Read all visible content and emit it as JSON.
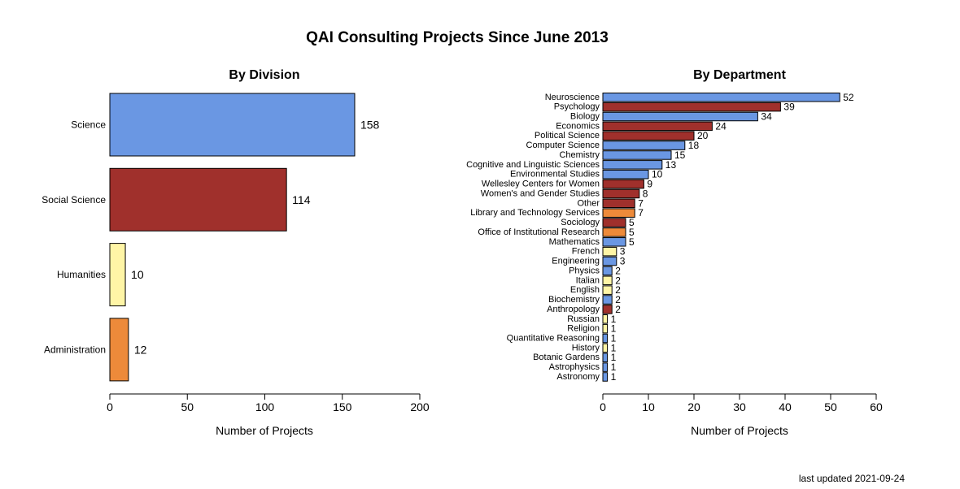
{
  "title": "QAI Consulting Projects Since June 2013",
  "footer": "last updated 2021-09-24",
  "colors": {
    "Science": "#6a97e3",
    "Social Science": "#a0302c",
    "Humanities": "#fff5a6",
    "Administration": "#ed8a3a"
  },
  "chart_data": [
    {
      "type": "bar",
      "orientation": "horizontal",
      "title": "By Division",
      "xlabel": "Number of Projects",
      "xlim": [
        0,
        200
      ],
      "xticks": [
        0,
        50,
        100,
        150,
        200
      ],
      "categories": [
        "Science",
        "Social Science",
        "Humanities",
        "Administration"
      ],
      "values": [
        158,
        114,
        10,
        12
      ],
      "groups": [
        "Science",
        "Social Science",
        "Humanities",
        "Administration"
      ]
    },
    {
      "type": "bar",
      "orientation": "horizontal",
      "title": "By Department",
      "xlabel": "Number of Projects",
      "xlim": [
        0,
        60
      ],
      "xticks": [
        0,
        10,
        20,
        30,
        40,
        50,
        60
      ],
      "categories": [
        "Neuroscience",
        "Psychology",
        "Biology",
        "Economics",
        "Political Science",
        "Computer Science",
        "Chemistry",
        "Cognitive and Linguistic Sciences",
        "Environmental Studies",
        "Wellesley Centers for Women",
        "Women's and Gender Studies",
        "Other",
        "Library and Technology Services",
        "Sociology",
        "Office of Institutional Research",
        "Mathematics",
        "French",
        "Engineering",
        "Physics",
        "Italian",
        "English",
        "Biochemistry",
        "Anthropology",
        "Russian",
        "Religion",
        "Quantitative Reasoning",
        "History",
        "Botanic Gardens",
        "Astrophysics",
        "Astronomy"
      ],
      "values": [
        52,
        39,
        34,
        24,
        20,
        18,
        15,
        13,
        10,
        9,
        8,
        7,
        7,
        5,
        5,
        5,
        3,
        3,
        2,
        2,
        2,
        2,
        2,
        1,
        1,
        1,
        1,
        1,
        1,
        1
      ],
      "groups": [
        "Science",
        "Social Science",
        "Science",
        "Social Science",
        "Social Science",
        "Science",
        "Science",
        "Science",
        "Science",
        "Social Science",
        "Social Science",
        "Social Science",
        "Administration",
        "Social Science",
        "Administration",
        "Science",
        "Humanities",
        "Science",
        "Science",
        "Humanities",
        "Humanities",
        "Science",
        "Social Science",
        "Humanities",
        "Humanities",
        "Science",
        "Humanities",
        "Science",
        "Science",
        "Science"
      ]
    }
  ]
}
